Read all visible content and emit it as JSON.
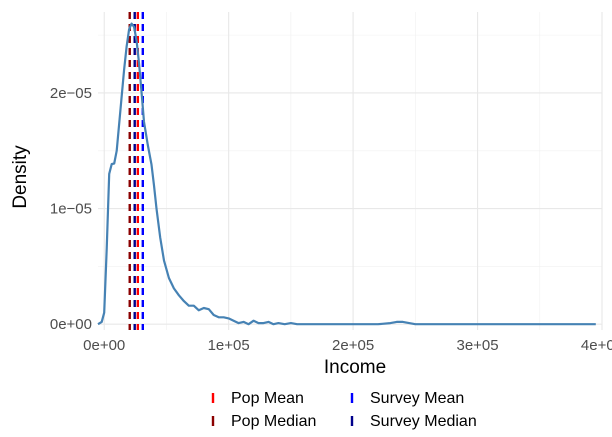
{
  "chart_data": {
    "type": "line",
    "title": "",
    "xlabel": "Income",
    "ylabel": "Density",
    "xlim": [
      -5000,
      400000
    ],
    "ylim": [
      -5e-07,
      2.7e-05
    ],
    "x_ticks": [
      0,
      100000,
      200000,
      300000,
      400000
    ],
    "x_tick_labels": [
      "0e+00",
      "1e+05",
      "2e+05",
      "3e+05",
      "4e+05"
    ],
    "y_ticks": [
      0,
      1e-05,
      2e-05
    ],
    "y_tick_labels": [
      "0e+00",
      "1e−05",
      "2e−05"
    ],
    "grid": true,
    "legend_position": "bottom",
    "series": [
      {
        "color": "#4682B4",
        "x": [
          -5000,
          -2000,
          0,
          2000,
          4000,
          6000,
          8000,
          10000,
          13000,
          16000,
          18000,
          20000,
          22000,
          24000,
          26000,
          28000,
          30000,
          32000,
          35000,
          38000,
          40000,
          42000,
          45000,
          48000,
          52000,
          56000,
          60000,
          64000,
          68000,
          72000,
          76000,
          80000,
          84000,
          88000,
          92000,
          96000,
          100000,
          104000,
          108000,
          112000,
          116000,
          120000,
          124000,
          128000,
          132000,
          136000,
          140000,
          145000,
          150000,
          155000,
          160000,
          170000,
          180000,
          190000,
          200000,
          210000,
          220000,
          230000,
          235000,
          240000,
          245000,
          250000,
          260000,
          270000,
          280000,
          300000,
          320000,
          340000,
          360000,
          380000,
          395000
        ],
        "y": [
          0.0,
          2e-07,
          1e-06,
          6.5e-06,
          1.3e-05,
          1.385e-05,
          1.39e-05,
          1.5e-05,
          1.85e-05,
          2.2e-05,
          2.4e-05,
          2.55e-05,
          2.6e-05,
          2.57e-05,
          2.45e-05,
          2.25e-05,
          2e-05,
          1.75e-05,
          1.55e-05,
          1.38e-05,
          1.2e-05,
          1e-05,
          7.5e-06,
          5.5e-06,
          4e-06,
          3.1e-06,
          2.5e-06,
          2e-06,
          1.6e-06,
          1.6e-06,
          1.2e-06,
          1.4e-06,
          1.3e-06,
          8e-07,
          6e-07,
          6e-07,
          5e-07,
          3e-07,
          1e-07,
          2e-07,
          0.0,
          3e-07,
          1e-07,
          1e-07,
          2e-07,
          0.0,
          1e-07,
          0.0,
          1e-07,
          0.0,
          0.0,
          0.0,
          0.0,
          0.0,
          0.0,
          0.0,
          0.0,
          1e-07,
          2e-07,
          2e-07,
          1e-07,
          0.0,
          0.0,
          0.0,
          0.0,
          0.0,
          0.0,
          0.0,
          0.0,
          0.0,
          0.0
        ]
      }
    ],
    "vlines": [
      {
        "name": "Pop Mean",
        "x": 27000,
        "color": "#FF0000"
      },
      {
        "name": "Pop Median",
        "x": 20500,
        "color": "#8B0000"
      },
      {
        "name": "Survey Mean",
        "x": 31000,
        "color": "#0000FF"
      },
      {
        "name": "Survey Median",
        "x": 24500,
        "color": "#00008B"
      }
    ],
    "legend": {
      "entries": [
        {
          "label": "Pop Mean",
          "color": "#FF0000"
        },
        {
          "label": "Survey Mean",
          "color": "#0000FF"
        },
        {
          "label": "Pop Median",
          "color": "#8B0000"
        },
        {
          "label": "Survey Median",
          "color": "#00008B"
        }
      ]
    }
  }
}
